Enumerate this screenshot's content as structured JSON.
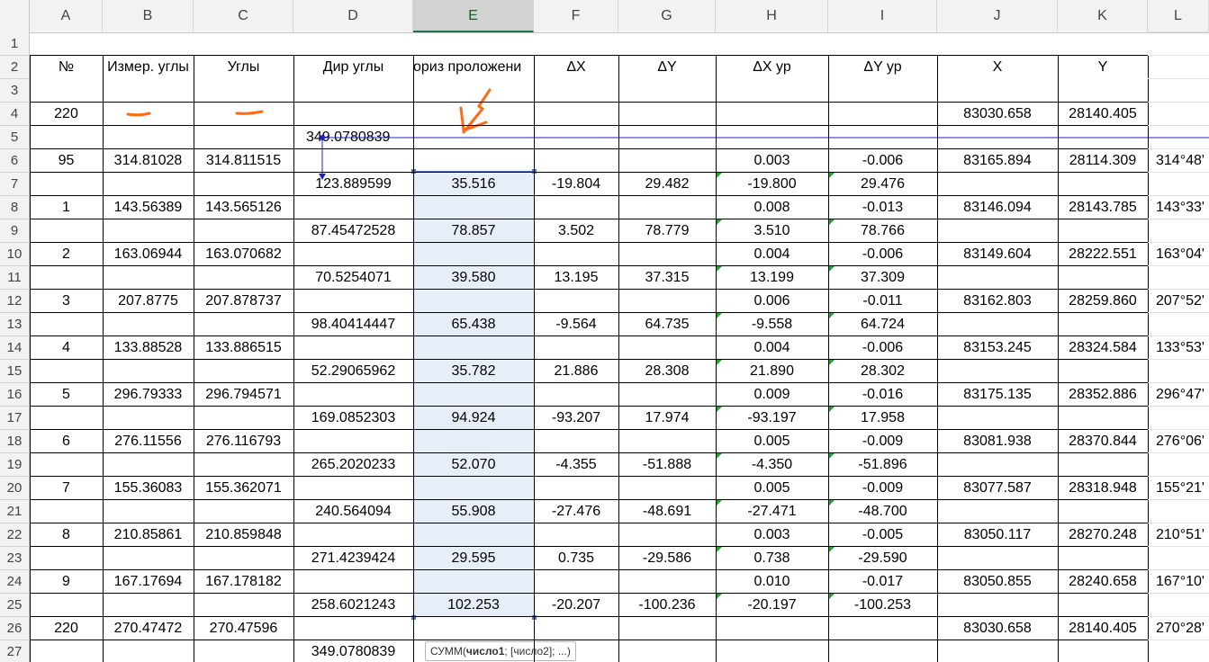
{
  "columns": [
    "A",
    "B",
    "C",
    "D",
    "E",
    "F",
    "G",
    "H",
    "I",
    "J",
    "K",
    "L"
  ],
  "rows": [
    "1",
    "2",
    "3",
    "4",
    "5",
    "6",
    "7",
    "8",
    "9",
    "10",
    "11",
    "12",
    "13",
    "14",
    "15",
    "16",
    "17",
    "18",
    "19",
    "20",
    "21",
    "22",
    "23",
    "24",
    "25",
    "26",
    "27"
  ],
  "cells": {
    "A2": "№",
    "B2": "Измер. углы",
    "C2": "Углы",
    "D2": "Дир углы",
    "E2": "ориз проложени",
    "F2": "ΔX",
    "G2": "ΔY",
    "H2": "ΔX ур",
    "I2": "ΔY ур",
    "J2": "X",
    "K2": "Y",
    "A4": "220",
    "J4": "83030.658",
    "K4": "28140.405",
    "D5": "349.0780839",
    "A6": "95",
    "B6": "314.81028",
    "C6": "314.811515",
    "H6": "0.003",
    "I6": "-0.006",
    "J6": "83165.894",
    "K6": "28114.309",
    "L6": "314°48'",
    "D7": "123.889599",
    "E7": "35.516",
    "F7": "-19.804",
    "G7": "29.482",
    "H7": "-19.800",
    "I7": "29.476",
    "A8": "1",
    "B8": "143.56389",
    "C8": "143.565126",
    "H8": "0.008",
    "I8": "-0.013",
    "J8": "83146.094",
    "K8": "28143.785",
    "L8": "143°33'",
    "D9": "87.45472528",
    "E9": "78.857",
    "F9": "3.502",
    "G9": "78.779",
    "H9": "3.510",
    "I9": "78.766",
    "A10": "2",
    "B10": "163.06944",
    "C10": "163.070682",
    "H10": "0.004",
    "I10": "-0.006",
    "J10": "83149.604",
    "K10": "28222.551",
    "L10": "163°04'",
    "D11": "70.5254071",
    "E11": "39.580",
    "F11": "13.195",
    "G11": "37.315",
    "H11": "13.199",
    "I11": "37.309",
    "A12": "3",
    "B12": "207.8775",
    "C12": "207.878737",
    "H12": "0.006",
    "I12": "-0.011",
    "J12": "83162.803",
    "K12": "28259.860",
    "L12": "207°52'",
    "D13": "98.40414447",
    "E13": "65.438",
    "F13": "-9.564",
    "G13": "64.735",
    "H13": "-9.558",
    "I13": "64.724",
    "A14": "4",
    "B14": "133.88528",
    "C14": "133.886515",
    "H14": "0.004",
    "I14": "-0.006",
    "J14": "83153.245",
    "K14": "28324.584",
    "L14": "133°53'",
    "D15": "52.29065962",
    "E15": "35.782",
    "F15": "21.886",
    "G15": "28.308",
    "H15": "21.890",
    "I15": "28.302",
    "A16": "5",
    "B16": "296.79333",
    "C16": "296.794571",
    "H16": "0.009",
    "I16": "-0.016",
    "J16": "83175.135",
    "K16": "28352.886",
    "L16": "296°47'",
    "D17": "169.0852303",
    "E17": "94.924",
    "F17": "-93.207",
    "G17": "17.974",
    "H17": "-93.197",
    "I17": "17.958",
    "A18": "6",
    "B18": "276.11556",
    "C18": "276.116793",
    "H18": "0.005",
    "I18": "-0.009",
    "J18": "83081.938",
    "K18": "28370.844",
    "L18": "276°06'",
    "D19": "265.2020233",
    "E19": "52.070",
    "F19": "-4.355",
    "G19": "-51.888",
    "H19": "-4.350",
    "I19": "-51.896",
    "A20": "7",
    "B20": "155.36083",
    "C20": "155.362071",
    "H20": "0.005",
    "I20": "-0.009",
    "J20": "83077.587",
    "K20": "28318.948",
    "L20": "155°21'",
    "D21": "240.564094",
    "E21": "55.908",
    "F21": "-27.476",
    "G21": "-48.691",
    "H21": "-27.471",
    "I21": "-48.700",
    "A22": "8",
    "B22": "210.85861",
    "C22": "210.859848",
    "H22": "0.003",
    "I22": "-0.005",
    "J22": "83050.117",
    "K22": "28270.248",
    "L22": "210°51'",
    "D23": "271.4239424",
    "E23": "29.595",
    "F23": "0.735",
    "G23": "-29.586",
    "H23": "0.738",
    "I23": "-29.590",
    "A24": "9",
    "B24": "167.17694",
    "C24": "167.178182",
    "H24": "0.010",
    "I24": "-0.017",
    "J24": "83050.855",
    "K24": "28240.658",
    "L24": "167°10'",
    "D25": "258.6021243",
    "E25": "102.253",
    "F25": "-20.207",
    "G25": "-100.236",
    "H25": "-20.197",
    "I25": "-100.253",
    "A26": "220",
    "B26": "270.47472",
    "C26": "270.47596",
    "J26": "83030.658",
    "K26": "28140.405",
    "L26": "270°28'",
    "D27": "349.0780839"
  },
  "selection": {
    "range": "E7:E25",
    "active_column": "E"
  },
  "tooltip": {
    "fn": "СУММ(",
    "arg1": "число1",
    "rest": "; [число2]; ...)"
  },
  "colors": {
    "accent": "#217346",
    "selection_border": "#4472c4",
    "selection_fill": "#e8eef8",
    "annotation": "#ff6a13",
    "arrow": "#1f1fcf",
    "comment_marker": "#21a336"
  }
}
